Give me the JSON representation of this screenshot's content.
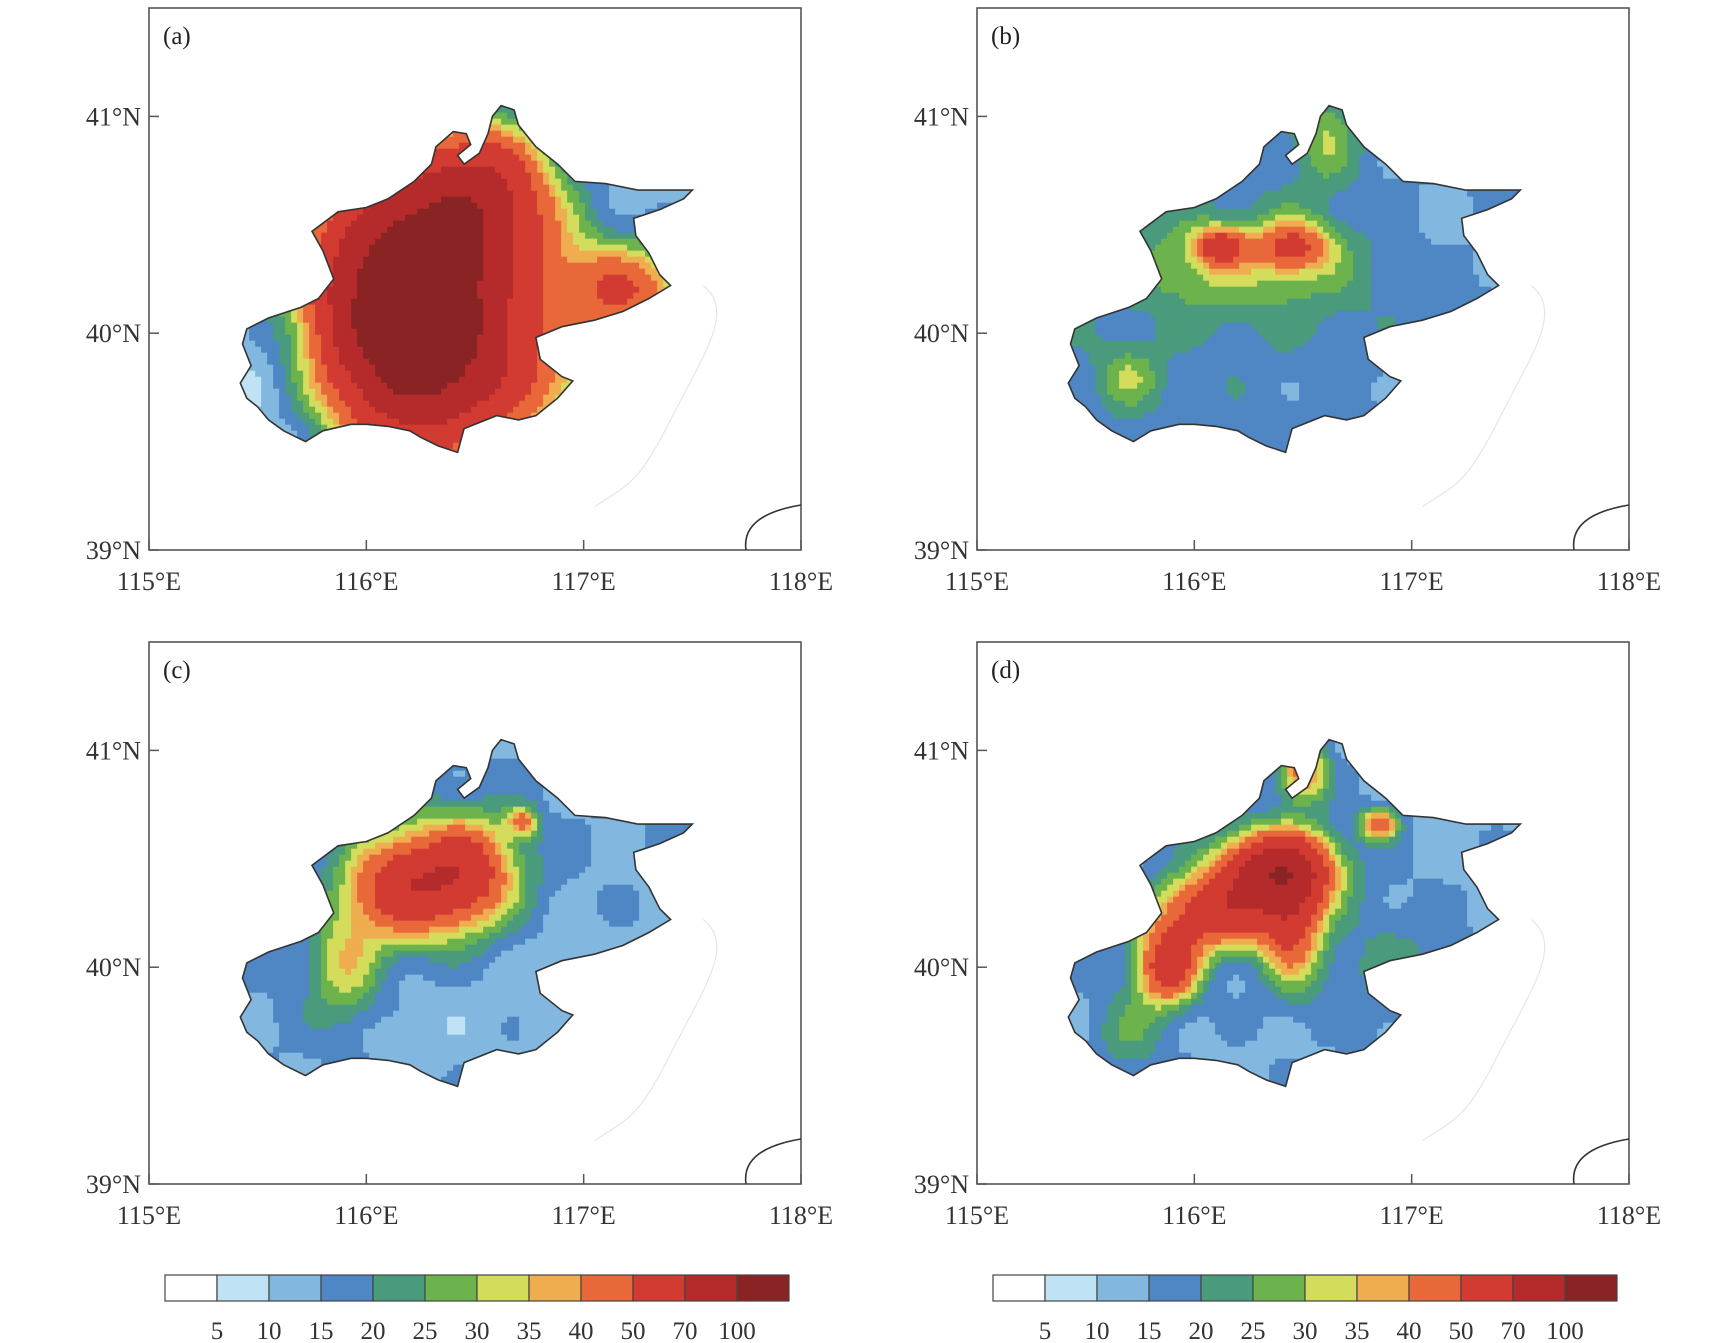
{
  "figure": {
    "panels": [
      {
        "label": "(a)",
        "pattern": "a"
      },
      {
        "label": "(b)",
        "pattern": "b"
      },
      {
        "label": "(c)",
        "pattern": "c"
      },
      {
        "label": "(d)",
        "pattern": "d"
      }
    ],
    "lon_ticks": [
      "115°E",
      "116°E",
      "117°E",
      "118°E"
    ],
    "lat_ticks": [
      "39°N",
      "40°N",
      "41°N"
    ],
    "lon_range": [
      115,
      118
    ],
    "lat_range": [
      39,
      41.5
    ]
  },
  "colorbar": {
    "levels": [
      "5",
      "10",
      "15",
      "20",
      "25",
      "30",
      "35",
      "40",
      "50",
      "70",
      "100"
    ],
    "colors": [
      "#ffffff",
      "#bfe3f4",
      "#82b8e0",
      "#4f86c4",
      "#4a9b7c",
      "#6cb34d",
      "#d4dc5c",
      "#efad4f",
      "#e8683a",
      "#d23b31",
      "#b52a2a",
      "#8a2424"
    ]
  },
  "chart_data": [
    {
      "type": "heatmap",
      "title": "(a)",
      "x_ticks": [
        "115°E",
        "116°E",
        "117°E",
        "118°E"
      ],
      "y_ticks": [
        "39°N",
        "40°N",
        "41°N"
      ],
      "xlim": [
        115,
        118
      ],
      "ylim": [
        39,
        41.5
      ],
      "field_summary": "Strong precipitation over central Beijing: maximum above 100 near 116.2°E 40.0°N; low values (10–20) in the southwest"
    },
    {
      "type": "heatmap",
      "title": "(b)",
      "x_ticks": [
        "115°E",
        "116°E",
        "117°E",
        "118°E"
      ],
      "y_ticks": [
        "39°N",
        "40°N",
        "41°N"
      ],
      "xlim": [
        115,
        118
      ],
      "ylim": [
        39,
        41.5
      ],
      "field_summary": "Mostly 15–25 across the domain, local maxima 40–50 near 116.1°E 40.4°N and 116.45°E 40.4°N"
    },
    {
      "type": "heatmap",
      "title": "(c)",
      "x_ticks": [
        "115°E",
        "116°E",
        "117°E",
        "118°E"
      ],
      "y_ticks": [
        "39°N",
        "40°N",
        "41°N"
      ],
      "xlim": [
        115,
        118
      ],
      "ylim": [
        39,
        41.5
      ],
      "field_summary": "Maximum 50–70 near 116.35°E 40.4°N; most of the region 10–25"
    },
    {
      "type": "heatmap",
      "title": "(d)",
      "x_ticks": [
        "115°E",
        "116°E",
        "117°E",
        "118°E"
      ],
      "y_ticks": [
        "39°N",
        "40°N",
        "41°N"
      ],
      "xlim": [
        115,
        118
      ],
      "ylim": [
        39,
        41.5
      ],
      "field_summary": "Southwest–northeast band of 40–100 from 115.85°E 40.0°N to 116.4°E 40.45°N; elsewhere 10–25"
    }
  ]
}
